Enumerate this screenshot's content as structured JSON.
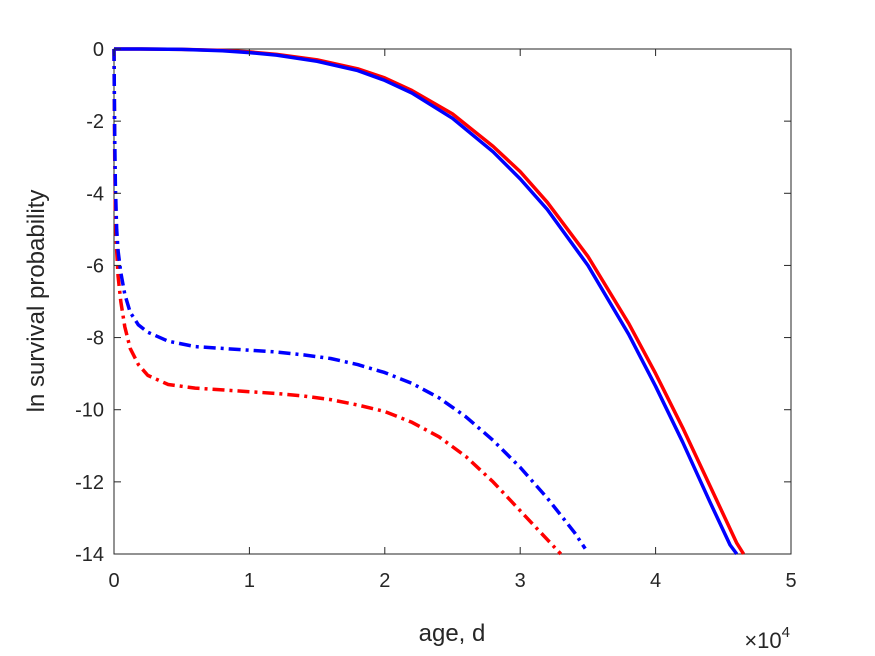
{
  "chart_data": {
    "type": "line",
    "xlabel": "age, d",
    "ylabel": "ln survival probability",
    "x_multiplier": {
      "base": "×10",
      "exponent": "4"
    },
    "xlim": [
      0,
      50000
    ],
    "ylim": [
      -14,
      0
    ],
    "xticks": [
      0,
      10000,
      20000,
      30000,
      40000,
      50000
    ],
    "xtick_labels": [
      "0",
      "1",
      "2",
      "3",
      "4",
      "5"
    ],
    "yticks": [
      0,
      -2,
      -4,
      -6,
      -8,
      -10,
      -12,
      -14
    ],
    "ytick_labels": [
      "0",
      "-2",
      "-4",
      "-6",
      "-8",
      "-10",
      "-12",
      "-14"
    ],
    "grid": false,
    "legend": null,
    "series": [
      {
        "color": "#ff0000",
        "style": "solid",
        "x": [
          0,
          2000,
          5000,
          8000,
          10000,
          12000,
          15000,
          18000,
          20000,
          22000,
          25000,
          28000,
          30000,
          32000,
          35000,
          38000,
          40000,
          42000,
          44000,
          46000,
          46500
        ],
        "y": [
          0,
          0,
          -0.01,
          -0.04,
          -0.08,
          -0.15,
          -0.3,
          -0.55,
          -0.8,
          -1.15,
          -1.8,
          -2.7,
          -3.4,
          -4.25,
          -5.75,
          -7.6,
          -9.0,
          -10.5,
          -12.1,
          -13.7,
          -14.0
        ]
      },
      {
        "color": "#0000ff",
        "style": "solid",
        "x": [
          0,
          2000,
          5000,
          8000,
          10000,
          12000,
          15000,
          18000,
          20000,
          22000,
          25000,
          28000,
          30000,
          32000,
          35000,
          38000,
          40000,
          42000,
          44000,
          45500,
          46000
        ],
        "y": [
          0,
          0,
          -0.01,
          -0.05,
          -0.1,
          -0.17,
          -0.34,
          -0.6,
          -0.87,
          -1.22,
          -1.92,
          -2.85,
          -3.6,
          -4.45,
          -6.0,
          -7.9,
          -9.35,
          -10.9,
          -12.55,
          -13.75,
          -14.0
        ]
      },
      {
        "color": "#ff0000",
        "style": "dashdot",
        "x": [
          0,
          50,
          100,
          200,
          300,
          500,
          800,
          1200,
          1800,
          2500,
          4000,
          6000,
          8000,
          10000,
          12000,
          14000,
          16000,
          18000,
          20000,
          22000,
          24000,
          26000,
          28000,
          30000,
          32000,
          33000
        ],
        "y": [
          0,
          -3.0,
          -4.5,
          -5.6,
          -6.3,
          -7.0,
          -7.7,
          -8.3,
          -8.75,
          -9.05,
          -9.3,
          -9.4,
          -9.45,
          -9.5,
          -9.55,
          -9.62,
          -9.72,
          -9.87,
          -10.05,
          -10.35,
          -10.75,
          -11.3,
          -12.0,
          -12.8,
          -13.6,
          -14.0
        ]
      },
      {
        "color": "#0000ff",
        "style": "dashdot",
        "x": [
          0,
          50,
          100,
          200,
          300,
          500,
          800,
          1200,
          1800,
          2500,
          4000,
          6000,
          8000,
          10000,
          12000,
          14000,
          16000,
          18000,
          20000,
          22000,
          24000,
          26000,
          28000,
          30000,
          32000,
          34000,
          34800
        ],
        "y": [
          0,
          -2.4,
          -3.8,
          -5.0,
          -5.6,
          -6.2,
          -6.8,
          -7.3,
          -7.65,
          -7.85,
          -8.1,
          -8.25,
          -8.3,
          -8.35,
          -8.4,
          -8.48,
          -8.58,
          -8.75,
          -8.97,
          -9.27,
          -9.67,
          -10.2,
          -10.85,
          -11.6,
          -12.45,
          -13.4,
          -13.85
        ]
      }
    ]
  }
}
